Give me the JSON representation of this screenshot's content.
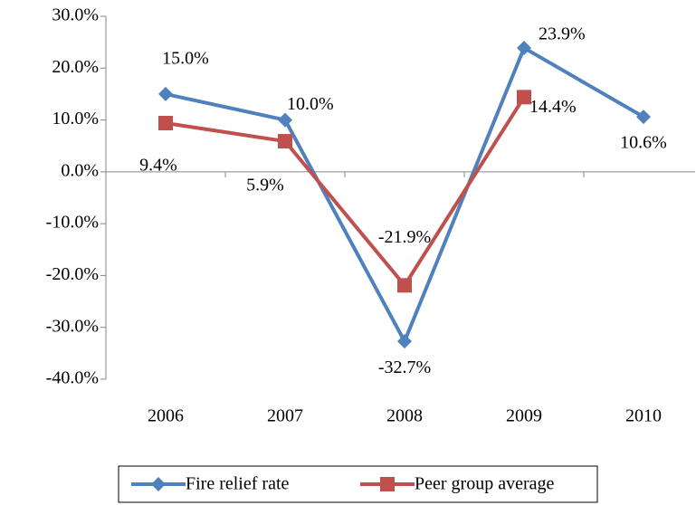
{
  "chart_data": {
    "type": "line",
    "categories": [
      "2006",
      "2007",
      "2008",
      "2009",
      "2010"
    ],
    "series": [
      {
        "name": "Fire relief rate",
        "color": "#4f81bd",
        "marker": "diamond",
        "values": [
          15.0,
          10.0,
          -32.7,
          23.9,
          10.6
        ],
        "value_labels": [
          "15.0%",
          "10.0%",
          "-32.7%",
          "23.9%",
          "10.6%"
        ]
      },
      {
        "name": "Peer group average",
        "color": "#c0504d",
        "marker": "square",
        "values": [
          9.4,
          5.9,
          -21.9,
          14.4,
          null
        ],
        "value_labels": [
          "9.4%",
          "5.9%",
          "-21.9%",
          "14.4%",
          null
        ]
      }
    ],
    "ylim": [
      -40,
      30
    ],
    "yticks": [
      {
        "value": -40,
        "label": "-40.0%"
      },
      {
        "value": -30,
        "label": "-30.0%"
      },
      {
        "value": -20,
        "label": "-20.0%"
      },
      {
        "value": -10,
        "label": "-10.0%"
      },
      {
        "value": 0,
        "label": "0.0%"
      },
      {
        "value": 10,
        "label": "10.0%"
      },
      {
        "value": 20,
        "label": "20.0%"
      },
      {
        "value": 30,
        "label": "30.0%"
      }
    ],
    "legend": "bottom"
  }
}
